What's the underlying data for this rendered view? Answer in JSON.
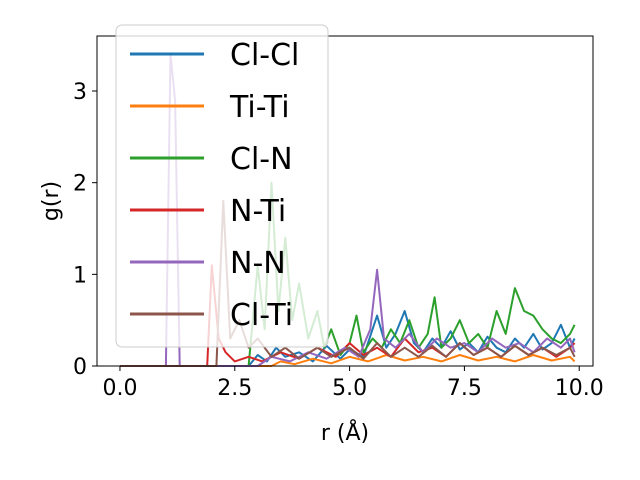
{
  "chart_data": {
    "type": "line",
    "xlabel": "r (Å)",
    "ylabel": "g(r)",
    "xlim": [
      -0.5,
      10.3
    ],
    "ylim": [
      0,
      3.6
    ],
    "xticks": [
      0.0,
      2.5,
      5.0,
      7.5,
      10.0
    ],
    "xtick_labels": [
      "0.0",
      "2.5",
      "5.0",
      "7.5",
      "10.0"
    ],
    "yticks": [
      0,
      1,
      2,
      3
    ],
    "ytick_labels": [
      "0",
      "1",
      "2",
      "3"
    ],
    "grid": false,
    "legend_position": "top-left",
    "series": [
      {
        "name": "Cl-Cl",
        "color": "#1f77b4",
        "points": [
          [
            0,
            0
          ],
          [
            2.8,
            0
          ],
          [
            3.0,
            0.12
          ],
          [
            3.2,
            0.05
          ],
          [
            3.4,
            0.2
          ],
          [
            3.6,
            0.1
          ],
          [
            3.9,
            0.15
          ],
          [
            4.2,
            0.05
          ],
          [
            4.5,
            0.22
          ],
          [
            4.8,
            0.08
          ],
          [
            5.0,
            0.18
          ],
          [
            5.3,
            0.1
          ],
          [
            5.6,
            0.55
          ],
          [
            5.8,
            0.2
          ],
          [
            6.0,
            0.35
          ],
          [
            6.2,
            0.6
          ],
          [
            6.4,
            0.25
          ],
          [
            6.6,
            0.15
          ],
          [
            6.8,
            0.3
          ],
          [
            7.0,
            0.2
          ],
          [
            7.2,
            0.38
          ],
          [
            7.4,
            0.18
          ],
          [
            7.6,
            0.25
          ],
          [
            7.8,
            0.15
          ],
          [
            8.0,
            0.32
          ],
          [
            8.2,
            0.2
          ],
          [
            8.4,
            0.15
          ],
          [
            8.6,
            0.3
          ],
          [
            8.8,
            0.2
          ],
          [
            9.0,
            0.35
          ],
          [
            9.2,
            0.18
          ],
          [
            9.4,
            0.25
          ],
          [
            9.6,
            0.45
          ],
          [
            9.8,
            0.2
          ],
          [
            9.9,
            0.3
          ]
        ]
      },
      {
        "name": "Ti-Ti",
        "color": "#ff7f0e",
        "points": [
          [
            0,
            0
          ],
          [
            3.3,
            0
          ],
          [
            3.5,
            0.05
          ],
          [
            3.8,
            0.02
          ],
          [
            4.2,
            0.08
          ],
          [
            4.6,
            0.03
          ],
          [
            5.0,
            0.1
          ],
          [
            5.4,
            0.05
          ],
          [
            5.8,
            0.12
          ],
          [
            6.2,
            0.06
          ],
          [
            6.6,
            0.1
          ],
          [
            7.0,
            0.05
          ],
          [
            7.4,
            0.12
          ],
          [
            7.8,
            0.06
          ],
          [
            8.2,
            0.1
          ],
          [
            8.6,
            0.05
          ],
          [
            9.0,
            0.12
          ],
          [
            9.4,
            0.06
          ],
          [
            9.8,
            0.1
          ],
          [
            9.9,
            0.05
          ]
        ]
      },
      {
        "name": "Cl-N",
        "color": "#2ca02c",
        "points": [
          [
            0,
            0
          ],
          [
            2.8,
            0
          ],
          [
            3.0,
            1.1
          ],
          [
            3.15,
            0.4
          ],
          [
            3.3,
            2.0
          ],
          [
            3.45,
            0.6
          ],
          [
            3.6,
            1.4
          ],
          [
            3.75,
            0.5
          ],
          [
            3.9,
            0.9
          ],
          [
            4.1,
            0.3
          ],
          [
            4.3,
            0.6
          ],
          [
            4.45,
            0.2
          ],
          [
            4.6,
            0.4
          ],
          [
            4.8,
            0.12
          ],
          [
            5.0,
            0.25
          ],
          [
            5.15,
            0.55
          ],
          [
            5.3,
            0.15
          ],
          [
            5.5,
            0.3
          ],
          [
            5.7,
            0.2
          ],
          [
            5.9,
            0.4
          ],
          [
            6.1,
            0.25
          ],
          [
            6.3,
            0.5
          ],
          [
            6.5,
            0.2
          ],
          [
            6.7,
            0.35
          ],
          [
            6.85,
            0.75
          ],
          [
            7.0,
            0.2
          ],
          [
            7.2,
            0.3
          ],
          [
            7.4,
            0.5
          ],
          [
            7.6,
            0.25
          ],
          [
            7.8,
            0.35
          ],
          [
            8.0,
            0.2
          ],
          [
            8.2,
            0.6
          ],
          [
            8.4,
            0.35
          ],
          [
            8.6,
            0.85
          ],
          [
            8.8,
            0.6
          ],
          [
            9.0,
            0.55
          ],
          [
            9.2,
            0.4
          ],
          [
            9.4,
            0.3
          ],
          [
            9.6,
            0.25
          ],
          [
            9.8,
            0.35
          ],
          [
            9.9,
            0.45
          ]
        ]
      },
      {
        "name": "N-Ti",
        "color": "#d62728",
        "points": [
          [
            0,
            0
          ],
          [
            1.9,
            0
          ],
          [
            2.0,
            1.1
          ],
          [
            2.15,
            0.3
          ],
          [
            2.3,
            0.15
          ],
          [
            2.5,
            0.05
          ],
          [
            2.8,
            0.1
          ],
          [
            3.1,
            0.05
          ],
          [
            3.5,
            0.15
          ],
          [
            3.9,
            0.08
          ],
          [
            4.3,
            0.2
          ],
          [
            4.7,
            0.1
          ],
          [
            5.0,
            0.25
          ],
          [
            5.3,
            0.12
          ],
          [
            5.6,
            0.2
          ],
          [
            5.9,
            0.1
          ],
          [
            6.2,
            0.3
          ],
          [
            6.5,
            0.15
          ],
          [
            6.8,
            0.2
          ],
          [
            7.1,
            0.1
          ],
          [
            7.4,
            0.25
          ],
          [
            7.7,
            0.12
          ],
          [
            8.0,
            0.2
          ],
          [
            8.3,
            0.1
          ],
          [
            8.6,
            0.22
          ],
          [
            8.9,
            0.12
          ],
          [
            9.2,
            0.2
          ],
          [
            9.5,
            0.1
          ],
          [
            9.8,
            0.2
          ],
          [
            9.9,
            0.25
          ]
        ]
      },
      {
        "name": "N-N",
        "color": "#9467bd",
        "points": [
          [
            0,
            0
          ],
          [
            1.0,
            0
          ],
          [
            1.1,
            3.4
          ],
          [
            1.2,
            2.9
          ],
          [
            1.3,
            0
          ],
          [
            3.0,
            0
          ],
          [
            3.3,
            0.1
          ],
          [
            3.7,
            0.05
          ],
          [
            4.1,
            0.15
          ],
          [
            4.5,
            0.08
          ],
          [
            4.9,
            0.2
          ],
          [
            5.2,
            0.1
          ],
          [
            5.45,
            0.4
          ],
          [
            5.6,
            1.05
          ],
          [
            5.75,
            0.3
          ],
          [
            6.0,
            0.2
          ],
          [
            6.3,
            0.35
          ],
          [
            6.6,
            0.15
          ],
          [
            6.9,
            0.3
          ],
          [
            7.2,
            0.2
          ],
          [
            7.5,
            0.25
          ],
          [
            7.8,
            0.15
          ],
          [
            8.1,
            0.3
          ],
          [
            8.4,
            0.2
          ],
          [
            8.7,
            0.25
          ],
          [
            9.0,
            0.15
          ],
          [
            9.3,
            0.3
          ],
          [
            9.6,
            0.2
          ],
          [
            9.8,
            0.3
          ],
          [
            9.9,
            0.15
          ]
        ]
      },
      {
        "name": "Cl-Ti",
        "color": "#8c564b",
        "points": [
          [
            0,
            0
          ],
          [
            2.1,
            0
          ],
          [
            2.25,
            1.8
          ],
          [
            2.4,
            0.3
          ],
          [
            2.6,
            0.5
          ],
          [
            2.8,
            0.2
          ],
          [
            3.0,
            0.3
          ],
          [
            3.3,
            0.1
          ],
          [
            3.6,
            0.2
          ],
          [
            3.9,
            0.08
          ],
          [
            4.3,
            0.2
          ],
          [
            4.6,
            0.1
          ],
          [
            5.0,
            0.2
          ],
          [
            5.3,
            0.08
          ],
          [
            5.6,
            0.25
          ],
          [
            5.9,
            0.1
          ],
          [
            6.2,
            0.2
          ],
          [
            6.5,
            0.1
          ],
          [
            6.8,
            0.22
          ],
          [
            7.1,
            0.1
          ],
          [
            7.4,
            0.25
          ],
          [
            7.7,
            0.12
          ],
          [
            8.0,
            0.2
          ],
          [
            8.3,
            0.1
          ],
          [
            8.6,
            0.22
          ],
          [
            8.9,
            0.12
          ],
          [
            9.2,
            0.2
          ],
          [
            9.5,
            0.12
          ],
          [
            9.8,
            0.2
          ],
          [
            9.9,
            0.1
          ]
        ]
      }
    ]
  }
}
